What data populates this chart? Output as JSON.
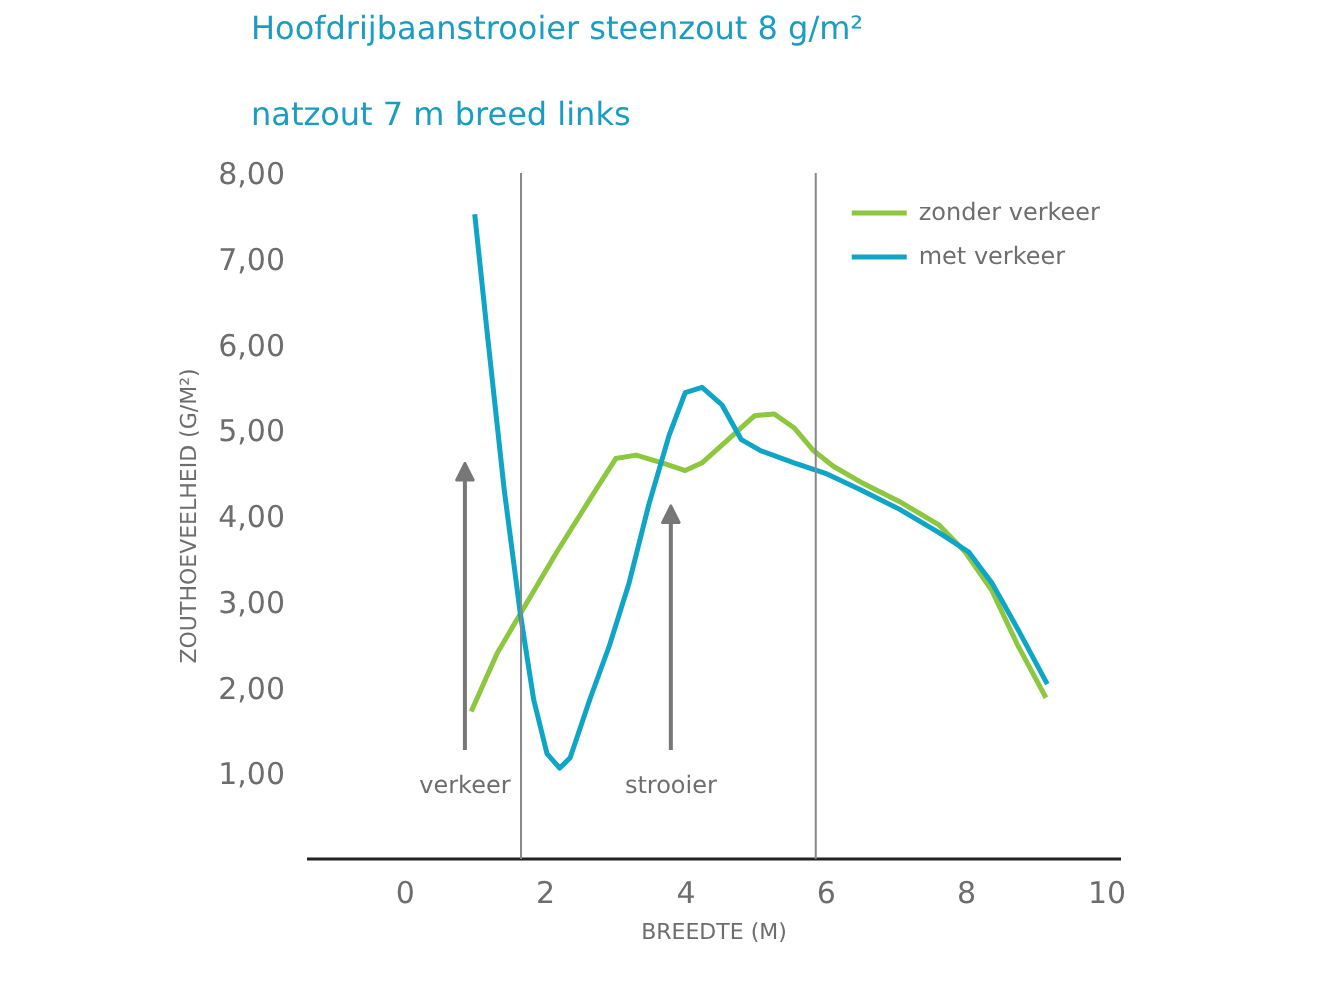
{
  "chart_data": {
    "type": "line",
    "title": "Hoofdrijbaanstrooier steenzout 8 g/m²",
    "subtitle": "natzout 7 m breed links",
    "xlabel": "BREEDTE (M)",
    "ylabel": "ZOUTHOEVEELHEID (G/M²)",
    "xlim": [
      -1.4,
      10.2
    ],
    "ylim": [
      0,
      8
    ],
    "xticks": [
      0,
      2,
      4,
      6,
      8,
      10
    ],
    "yticks": [
      {
        "value": 1,
        "label": "1,00"
      },
      {
        "value": 2,
        "label": "2,00"
      },
      {
        "value": 3,
        "label": "3,00"
      },
      {
        "value": 4,
        "label": "4,00"
      },
      {
        "value": 5,
        "label": "5,00"
      },
      {
        "value": 6,
        "label": "6,00"
      },
      {
        "value": 7,
        "label": "7,00"
      },
      {
        "value": 8,
        "label": "8,00"
      }
    ],
    "grid": false,
    "legend": "top right",
    "series": [
      {
        "name": "zonder verkeer",
        "color": "#8dc63f",
        "x": [
          0.94,
          1.31,
          1.64,
          2.16,
          2.72,
          3.0,
          3.29,
          3.66,
          3.99,
          4.23,
          4.6,
          4.98,
          5.26,
          5.54,
          5.82,
          6.1,
          6.48,
          7.04,
          7.6,
          7.98,
          8.36,
          8.73,
          9.13
        ],
        "values": [
          1.72,
          2.4,
          2.86,
          3.58,
          4.31,
          4.67,
          4.71,
          4.62,
          4.53,
          4.62,
          4.89,
          5.17,
          5.19,
          5.03,
          4.76,
          4.58,
          4.4,
          4.17,
          3.9,
          3.58,
          3.13,
          2.49,
          1.88
        ]
      },
      {
        "name": "met verkeer",
        "color": "#0ea5c6",
        "x": [
          0.99,
          1.17,
          1.41,
          1.64,
          1.83,
          2.02,
          2.2,
          2.35,
          2.63,
          2.91,
          3.19,
          3.47,
          3.76,
          3.99,
          4.23,
          4.51,
          4.79,
          5.07,
          5.54,
          6.01,
          6.48,
          7.04,
          7.6,
          8.03,
          8.36,
          8.73,
          9.15
        ],
        "values": [
          7.52,
          6.12,
          4.31,
          2.86,
          1.86,
          1.23,
          1.06,
          1.18,
          1.86,
          2.49,
          3.22,
          4.13,
          4.94,
          5.44,
          5.5,
          5.3,
          4.89,
          4.76,
          4.62,
          4.49,
          4.31,
          4.08,
          3.81,
          3.58,
          3.22,
          2.68,
          2.04
        ]
      }
    ],
    "ref_lines": [
      {
        "axis": "x",
        "value": 1.65,
        "color": "#888888"
      },
      {
        "axis": "x",
        "value": 5.85,
        "color": "#888888"
      }
    ],
    "annotations": [
      "verkeer",
      "strooier"
    ]
  }
}
